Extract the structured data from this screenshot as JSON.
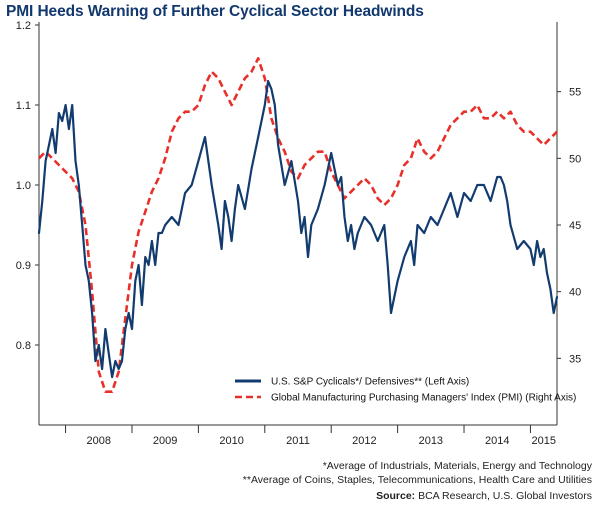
{
  "title": "PMI Heeds Warning of Further Cyclical Sector Headwinds",
  "footnotes": [
    "*Average of Industrials, Materials, Energy and Technology",
    "**Average of Coins, Staples, Telecommunications, Health Care and Utilities"
  ],
  "source": {
    "label": "Source:",
    "text": " BCA Research, U.S. Global Investors"
  },
  "chart_data": {
    "type": "line",
    "title": "PMI Heeds Warning of Further Cyclical Sector Headwinds",
    "x_range": [
      2007.6,
      2015.4
    ],
    "x_tick_labels": [
      "2008",
      "2009",
      "2010",
      "2011",
      "2012",
      "2013",
      "2014",
      "2015"
    ],
    "left_axis": {
      "range": [
        0.7,
        1.2
      ],
      "ticks": [
        0.8,
        0.9,
        1.0,
        1.1,
        1.2
      ],
      "tick_labels": [
        "0.8",
        "0.9",
        "1.0",
        "1.1",
        "1.2"
      ]
    },
    "right_axis": {
      "range": [
        30,
        60
      ],
      "ticks": [
        35,
        40,
        45,
        50,
        55
      ],
      "tick_labels": [
        "35",
        "40",
        "45",
        "50",
        "55"
      ]
    },
    "grid": false,
    "legend_position": "bottom-right",
    "series": [
      {
        "name": "U.S. S&P Cyclicals*/ Defensives** (Left Axis)",
        "axis": "left",
        "color": "#123c6f",
        "style": "solid",
        "x": [
          2007.6,
          2007.65,
          2007.7,
          2007.75,
          2007.8,
          2007.85,
          2007.9,
          2007.95,
          2008.0,
          2008.05,
          2008.1,
          2008.15,
          2008.2,
          2008.25,
          2008.3,
          2008.35,
          2008.4,
          2008.45,
          2008.5,
          2008.55,
          2008.6,
          2008.65,
          2008.7,
          2008.75,
          2008.8,
          2008.85,
          2008.9,
          2008.95,
          2009.0,
          2009.05,
          2009.1,
          2009.15,
          2009.2,
          2009.25,
          2009.3,
          2009.35,
          2009.4,
          2009.45,
          2009.5,
          2009.6,
          2009.7,
          2009.8,
          2009.9,
          2010.0,
          2010.1,
          2010.2,
          2010.3,
          2010.35,
          2010.4,
          2010.45,
          2010.5,
          2010.55,
          2010.6,
          2010.7,
          2010.8,
          2010.9,
          2011.0,
          2011.05,
          2011.1,
          2011.15,
          2011.2,
          2011.3,
          2011.4,
          2011.5,
          2011.55,
          2011.6,
          2011.65,
          2011.7,
          2011.75,
          2011.8,
          2011.9,
          2012.0,
          2012.05,
          2012.1,
          2012.15,
          2012.2,
          2012.25,
          2012.3,
          2012.35,
          2012.4,
          2012.5,
          2012.6,
          2012.7,
          2012.8,
          2012.85,
          2012.9,
          2013.0,
          2013.1,
          2013.2,
          2013.25,
          2013.3,
          2013.4,
          2013.5,
          2013.6,
          2013.7,
          2013.8,
          2013.9,
          2014.0,
          2014.1,
          2014.2,
          2014.3,
          2014.4,
          2014.5,
          2014.55,
          2014.6,
          2014.65,
          2014.7,
          2014.8,
          2014.9,
          2015.0,
          2015.05,
          2015.1,
          2015.15,
          2015.2,
          2015.25,
          2015.3,
          2015.35,
          2015.4
        ],
        "values": [
          0.94,
          0.98,
          1.03,
          1.05,
          1.07,
          1.04,
          1.09,
          1.08,
          1.1,
          1.07,
          1.1,
          1.03,
          1.0,
          0.95,
          0.9,
          0.88,
          0.84,
          0.78,
          0.8,
          0.77,
          0.82,
          0.79,
          0.76,
          0.78,
          0.77,
          0.78,
          0.82,
          0.84,
          0.82,
          0.88,
          0.9,
          0.85,
          0.91,
          0.9,
          0.93,
          0.9,
          0.94,
          0.94,
          0.95,
          0.96,
          0.95,
          0.99,
          1.0,
          1.03,
          1.06,
          1.0,
          0.95,
          0.92,
          0.98,
          0.96,
          0.93,
          0.97,
          1.0,
          0.97,
          1.02,
          1.06,
          1.1,
          1.13,
          1.12,
          1.1,
          1.05,
          1.0,
          1.03,
          0.98,
          0.94,
          0.96,
          0.91,
          0.95,
          0.96,
          0.97,
          1.0,
          1.04,
          1.02,
          1.0,
          1.01,
          0.96,
          0.93,
          0.95,
          0.92,
          0.94,
          0.96,
          0.95,
          0.93,
          0.95,
          0.9,
          0.84,
          0.88,
          0.91,
          0.93,
          0.9,
          0.95,
          0.94,
          0.96,
          0.95,
          0.97,
          0.99,
          0.96,
          0.99,
          0.98,
          1.0,
          1.0,
          0.98,
          1.01,
          1.01,
          1.0,
          0.98,
          0.95,
          0.92,
          0.93,
          0.92,
          0.9,
          0.93,
          0.91,
          0.92,
          0.89,
          0.87,
          0.84,
          0.86
        ]
      },
      {
        "name": "Global Manufacturing Purchasing Managers' Index (PMI) (Right Axis)",
        "axis": "right",
        "color": "#e8302a",
        "style": "dashed",
        "x": [
          2007.6,
          2007.7,
          2007.8,
          2007.9,
          2008.0,
          2008.1,
          2008.2,
          2008.3,
          2008.4,
          2008.5,
          2008.6,
          2008.7,
          2008.8,
          2008.9,
          2009.0,
          2009.1,
          2009.2,
          2009.3,
          2009.4,
          2009.5,
          2009.6,
          2009.7,
          2009.8,
          2009.9,
          2010.0,
          2010.1,
          2010.2,
          2010.3,
          2010.4,
          2010.5,
          2010.6,
          2010.7,
          2010.8,
          2010.9,
          2011.0,
          2011.1,
          2011.2,
          2011.3,
          2011.4,
          2011.5,
          2011.6,
          2011.7,
          2011.8,
          2011.9,
          2012.0,
          2012.1,
          2012.2,
          2012.3,
          2012.4,
          2012.5,
          2012.6,
          2012.7,
          2012.8,
          2012.9,
          2013.0,
          2013.1,
          2013.2,
          2013.3,
          2013.4,
          2013.5,
          2013.6,
          2013.7,
          2013.8,
          2013.9,
          2014.0,
          2014.1,
          2014.2,
          2014.3,
          2014.4,
          2014.5,
          2014.6,
          2014.7,
          2014.8,
          2014.9,
          2015.0,
          2015.1,
          2015.2,
          2015.3,
          2015.4
        ],
        "values": [
          50,
          50.5,
          50,
          49.5,
          49,
          48.5,
          47.5,
          45,
          40,
          34,
          32.5,
          32.5,
          34,
          38,
          42,
          44.5,
          46,
          47.5,
          48.5,
          50,
          52,
          53,
          53.5,
          53.5,
          54,
          55.5,
          56.5,
          56,
          55,
          54,
          55,
          56,
          56.5,
          57.5,
          56,
          53,
          51.5,
          50.5,
          49,
          48.5,
          49.5,
          50,
          50.5,
          50.5,
          49,
          48,
          47,
          47.5,
          48,
          48.5,
          48,
          47,
          46.5,
          47,
          48,
          49.5,
          50,
          51.5,
          50.5,
          50,
          50.5,
          51.5,
          52.5,
          53,
          53.5,
          53.5,
          54,
          53,
          53,
          53.5,
          53,
          53.5,
          52.5,
          52,
          52,
          51.5,
          51,
          51.5,
          52
        ]
      }
    ]
  }
}
